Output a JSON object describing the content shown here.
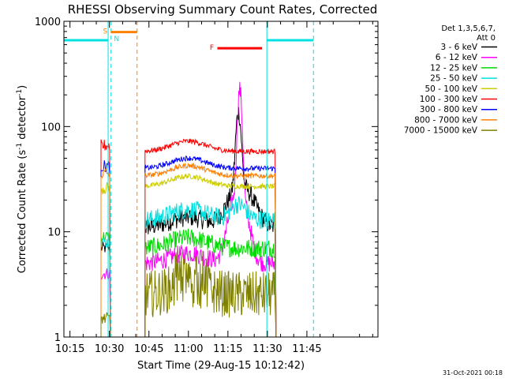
{
  "chart_data": {
    "type": "line",
    "title": "RHESSI Observing Summary Count Rates, Corrected",
    "xlabel": "Start Time (29-Aug-15 10:12:42)",
    "ylabel_main": "Corrected Count Rate (s",
    "ylabel_sup1": "-1",
    "ylabel_mid": " detector",
    "ylabel_sup2": "-1",
    "ylabel_end": ")",
    "y_scale": "log",
    "ylim": [
      1,
      1000
    ],
    "xlim_min": [
      12.7,
      132
    ],
    "x_ticks": [
      {
        "min": 15,
        "label": "10:15"
      },
      {
        "min": 30,
        "label": "10:30"
      },
      {
        "min": 45,
        "label": "10:45"
      },
      {
        "min": 60,
        "label": "11:00"
      },
      {
        "min": 75,
        "label": "11:15"
      },
      {
        "min": 90,
        "label": "11:30"
      },
      {
        "min": 105,
        "label": "11:45"
      }
    ],
    "y_ticks": [
      {
        "value": 1,
        "label": "1"
      },
      {
        "value": 10,
        "label": "10"
      },
      {
        "value": 100,
        "label": "100"
      },
      {
        "value": 1000,
        "label": "1000"
      }
    ],
    "legend_header": [
      "Det 1,3,5,6,7,",
      "Att 0"
    ],
    "legend_placement": "right",
    "footer_date": "31-Oct-2021 00:18",
    "series": [
      {
        "name": "3 - 6 keV",
        "color": "#000000",
        "level": 11,
        "pre": 7
      },
      {
        "name": "6 - 12 keV",
        "color": "#ff00ff",
        "level": 5,
        "pre": 4
      },
      {
        "name": "12 - 25 keV",
        "color": "#00dd00",
        "level": 7,
        "pre": 9
      },
      {
        "name": "25 - 50 keV",
        "color": "#00e0e0",
        "level": 13,
        "pre": 8
      },
      {
        "name": "50 - 100 keV",
        "color": "#cccc00",
        "level": 27,
        "pre": 26
      },
      {
        "name": "100 - 300 keV",
        "color": "#ff0000",
        "level": 58,
        "pre": 66
      },
      {
        "name": "300 - 800 keV",
        "color": "#0000ff",
        "level": 40,
        "pre": 42
      },
      {
        "name": "800 - 7000 keV",
        "color": "#ff8000",
        "level": 34,
        "pre": 36
      },
      {
        "name": "7000 - 15000 keV",
        "color": "#808000",
        "level": 1.5,
        "pre": 1.5
      }
    ],
    "flags": [
      {
        "label": "S",
        "color": "#ff8000",
        "x0": 30.5,
        "x1": 40.5,
        "y": 790
      },
      {
        "label": "F",
        "color": "#ff0000",
        "x0": 71,
        "x1": 88,
        "y": 555
      },
      {
        "label": "N",
        "color": "#00e0e0",
        "x0": 12.7,
        "x1": 29.5,
        "y": 660
      },
      {
        "label": "",
        "color": "#00e0e0",
        "x0": 89.8,
        "x1": 107.5,
        "y": 660
      }
    ],
    "night_boundaries": [
      {
        "x": 29.5,
        "color": "#00e0e0",
        "dash": false
      },
      {
        "x": 30.6,
        "color": "#00e0e0",
        "dash": true
      },
      {
        "x": 89.8,
        "color": "#00e0e0",
        "dash": false
      },
      {
        "x": 107.5,
        "color": "#00e0e0",
        "dash": true
      },
      {
        "x": 40.5,
        "color": "#ff8000",
        "dash": true
      }
    ],
    "data_windows": [
      [
        26.8,
        30.2
      ],
      [
        43.5,
        93.0
      ]
    ]
  }
}
